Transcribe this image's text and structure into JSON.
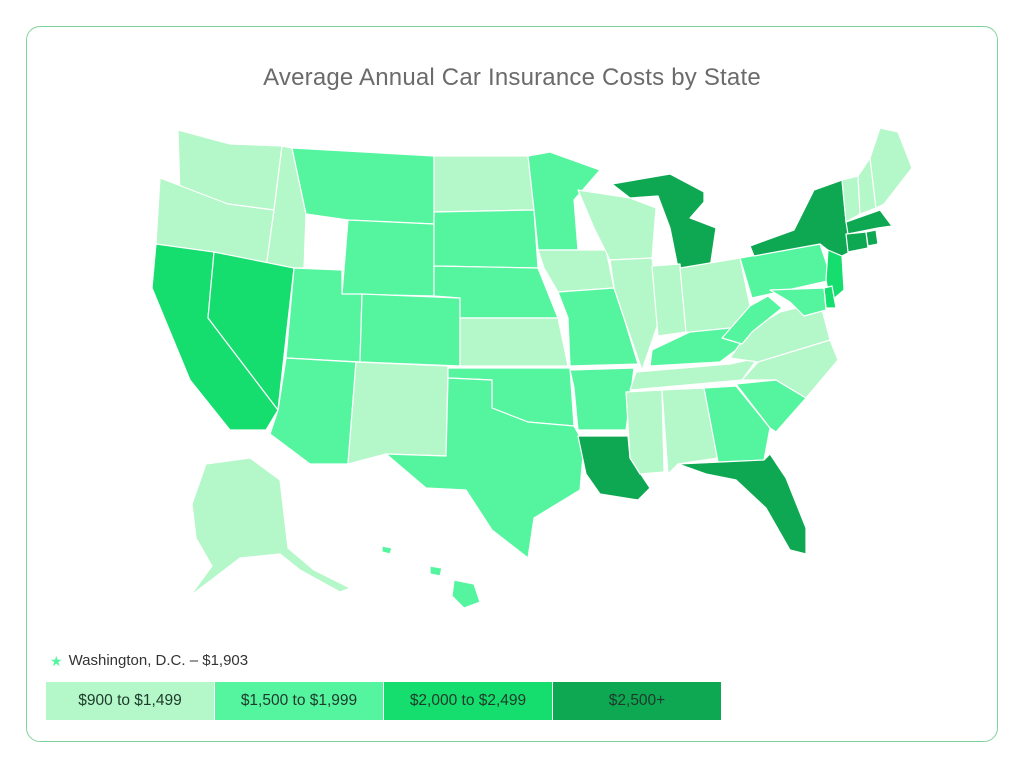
{
  "title": "Average Annual Car Insurance Costs by State",
  "dc_note": "Washington, D.C. – $1,903",
  "dc_marker_icon": "star-icon",
  "legend": [
    {
      "label": "$900 to $1,499",
      "color": "#b4f7c8"
    },
    {
      "label": "$1,500 to $1,999",
      "color": "#55f5a0"
    },
    {
      "label": "$2,000 to $2,499",
      "color": "#15de6e"
    },
    {
      "label": "$2,500+",
      "color": "#0fa852"
    }
  ],
  "state_tiers": {
    "WA": 0,
    "OR": 0,
    "ID": 0,
    "MT": 1,
    "WY": 1,
    "ND": 0,
    "SD": 1,
    "NE": 1,
    "KS": 0,
    "MN": 1,
    "IA": 0,
    "MO": 1,
    "WI": 0,
    "IL": 0,
    "MI": 3,
    "IN": 0,
    "OH": 0,
    "KY": 1,
    "TN": 0,
    "MS": 0,
    "AL": 0,
    "GA": 1,
    "FL": 3,
    "SC": 1,
    "NC": 0,
    "VA": 0,
    "WV": 1,
    "PA": 1,
    "NY": 3,
    "VT": 0,
    "NH": 0,
    "ME": 0,
    "MA": 3,
    "CT": 3,
    "RI": 3,
    "NJ": 2,
    "DE": 2,
    "MD": 1,
    "CA": 2,
    "NV": 2,
    "UT": 1,
    "CO": 1,
    "AZ": 1,
    "NM": 0,
    "TX": 1,
    "OK": 1,
    "AR": 1,
    "LA": 3,
    "AK": 0,
    "HI": 1
  }
}
